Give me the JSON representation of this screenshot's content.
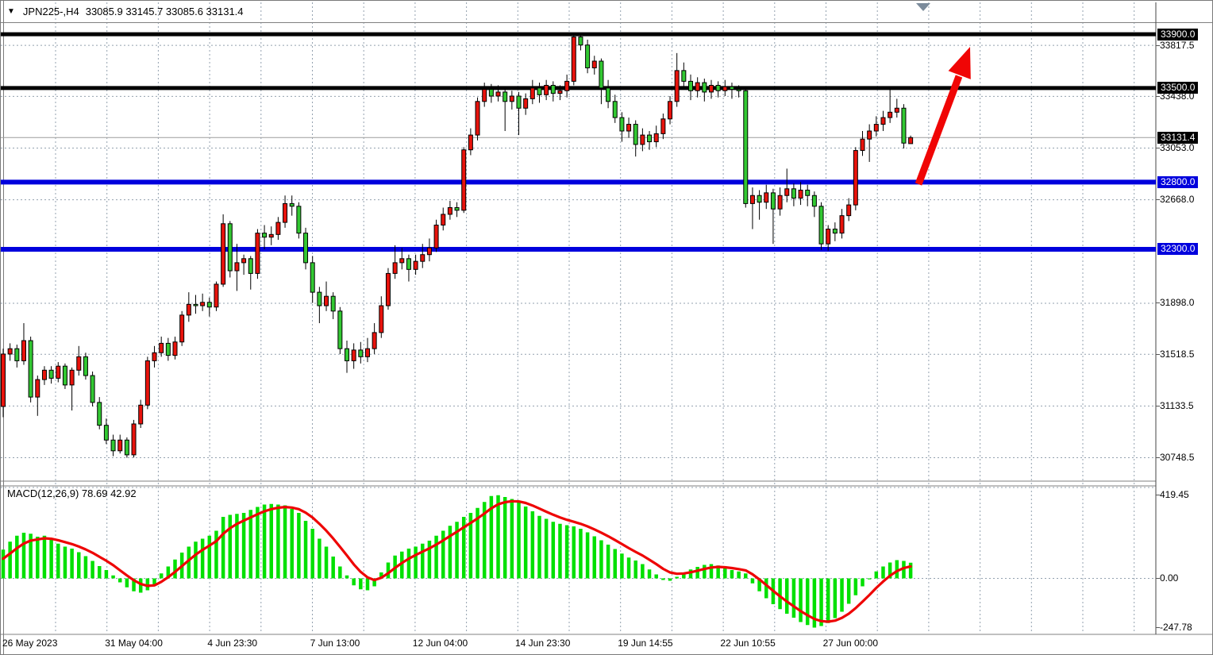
{
  "header": {
    "dropdown_icon": "▼",
    "symbol_period": "JPN225-,H4",
    "ohlc_text": "33085.9 33145.7 33085.6 33131.4"
  },
  "colors": {
    "bull_candle": "#e8130c",
    "bear_candle": "#32c832",
    "candle_outline": "#000000",
    "macd_histogram": "#00e000",
    "macd_signal": "#ee0404",
    "level_black": "#000000",
    "level_blue": "#0000dd",
    "current_price_line": "#9c9c9c",
    "grid": "#93a1af",
    "arrow": "#f00505",
    "badge_black_bg": "#000000",
    "badge_blue_bg": "#0000dd",
    "shift_marker": "#7b8b9b"
  },
  "chart_data": [
    {
      "type": "candlestick",
      "symbol": "JPN225-",
      "timeframe": "H4",
      "current_ohlc": {
        "open": 33085.9,
        "high": 33145.7,
        "low": 33085.6,
        "close": 33131.4
      },
      "ylim": [
        30570,
        33980
      ],
      "grid": "dashed",
      "y_gridlines": [
        {
          "text": "33817.5",
          "price": 33817.5
        },
        {
          "text": "33438.0",
          "price": 33438.0
        },
        {
          "text": "33053.0",
          "price": 33053.0
        },
        {
          "text": "32668.0",
          "price": 32668.0
        },
        {
          "text": "31898.0",
          "price": 31898.0
        },
        {
          "text": "31518.5",
          "price": 31518.5
        },
        {
          "text": "31133.5",
          "price": 31133.5
        },
        {
          "text": "30748.5",
          "price": 30748.5
        }
      ],
      "price_badges": [
        {
          "text": "33900.0",
          "price": 33900.0,
          "style": "black"
        },
        {
          "text": "33500.0",
          "price": 33500.0,
          "style": "black"
        },
        {
          "text": "33131.4",
          "price": 33131.4,
          "style": "black"
        },
        {
          "text": "32800.0",
          "price": 32800.0,
          "style": "blue"
        },
        {
          "text": "32300.0",
          "price": 32300.0,
          "style": "blue"
        }
      ],
      "horizontal_levels": [
        {
          "price": 33900.0,
          "style": "black",
          "width": 5
        },
        {
          "price": 33500.0,
          "style": "black",
          "width": 5
        },
        {
          "price": 32800.0,
          "style": "blue",
          "width": 6
        },
        {
          "price": 32300.0,
          "style": "blue",
          "width": 6
        }
      ],
      "current_price": 33131.4,
      "annotation": {
        "type": "up-arrow",
        "meaning": "projected breakout toward 33900 resistance"
      },
      "x_labels": [
        "26 May 2023",
        "31 May 04:00",
        "4 Jun 23:30",
        "7 Jun 13:00",
        "12 Jun 04:00",
        "14 Jun 23:30",
        "19 Jun 14:55",
        "22 Jun 10:55",
        "27 Jun 00:00"
      ],
      "candles_ohlc": [
        [
          31130,
          31560,
          31050,
          31520
        ],
        [
          31520,
          31600,
          31470,
          31560
        ],
        [
          31560,
          31590,
          31420,
          31470
        ],
        [
          31470,
          31750,
          31440,
          31620
        ],
        [
          31620,
          31650,
          31160,
          31200
        ],
        [
          31200,
          31360,
          31060,
          31330
        ],
        [
          31330,
          31430,
          31290,
          31400
        ],
        [
          31400,
          31430,
          31300,
          31340
        ],
        [
          31340,
          31460,
          31310,
          31430
        ],
        [
          31430,
          31450,
          31260,
          31290
        ],
        [
          31290,
          31420,
          31100,
          31400
        ],
        [
          31400,
          31580,
          31360,
          31500
        ],
        [
          31500,
          31530,
          31330,
          31360
        ],
        [
          31360,
          31390,
          31130,
          31160
        ],
        [
          31160,
          31200,
          30960,
          30990
        ],
        [
          30990,
          31040,
          30850,
          30880
        ],
        [
          30880,
          30920,
          30760,
          30800
        ],
        [
          30800,
          30920,
          30780,
          30880
        ],
        [
          30880,
          30900,
          30748,
          30770
        ],
        [
          30770,
          31030,
          30750,
          31000
        ],
        [
          31000,
          31180,
          30970,
          31140
        ],
        [
          31140,
          31500,
          31110,
          31470
        ],
        [
          31470,
          31580,
          31420,
          31530
        ],
        [
          31530,
          31650,
          31500,
          31600
        ],
        [
          31600,
          31640,
          31470,
          31510
        ],
        [
          31510,
          31650,
          31480,
          31610
        ],
        [
          31610,
          31840,
          31580,
          31810
        ],
        [
          31810,
          31980,
          31760,
          31890
        ],
        [
          31890,
          31960,
          31820,
          31880
        ],
        [
          31880,
          31970,
          31840,
          31905
        ],
        [
          31905,
          31940,
          31800,
          31870
        ],
        [
          31870,
          32060,
          31840,
          32040
        ],
        [
          32040,
          32560,
          32020,
          32490
        ],
        [
          32490,
          32510,
          32090,
          32140
        ],
        [
          32140,
          32340,
          31990,
          32200
        ],
        [
          32200,
          32260,
          32110,
          32230
        ],
        [
          32230,
          32250,
          32000,
          32120
        ],
        [
          32120,
          32450,
          32080,
          32420
        ],
        [
          32420,
          32480,
          32300,
          32390
        ],
        [
          32390,
          32470,
          32330,
          32410
        ],
        [
          32410,
          32540,
          32370,
          32500
        ],
        [
          32500,
          32700,
          32460,
          32640
        ],
        [
          32640,
          32700,
          32550,
          32620
        ],
        [
          32620,
          32650,
          32380,
          32420
        ],
        [
          32420,
          32460,
          32150,
          32200
        ],
        [
          32200,
          32250,
          31900,
          31980
        ],
        [
          31980,
          32020,
          31750,
          31880
        ],
        [
          31880,
          32060,
          31840,
          31950
        ],
        [
          31950,
          31980,
          31780,
          31840
        ],
        [
          31840,
          31870,
          31520,
          31560
        ],
        [
          31560,
          31620,
          31380,
          31470
        ],
        [
          31470,
          31600,
          31410,
          31550
        ],
        [
          31550,
          31610,
          31450,
          31500
        ],
        [
          31500,
          31640,
          31460,
          31560
        ],
        [
          31560,
          31750,
          31520,
          31680
        ],
        [
          31680,
          31950,
          31640,
          31880
        ],
        [
          31880,
          32160,
          31850,
          32120
        ],
        [
          32120,
          32330,
          32080,
          32200
        ],
        [
          32200,
          32310,
          32150,
          32230
        ],
        [
          32230,
          32260,
          32060,
          32150
        ],
        [
          32150,
          32260,
          32110,
          32210
        ],
        [
          32210,
          32340,
          32160,
          32260
        ],
        [
          32260,
          32380,
          32210,
          32310
        ],
        [
          32310,
          32520,
          32280,
          32480
        ],
        [
          32480,
          32610,
          32440,
          32560
        ],
        [
          32560,
          32660,
          32520,
          32610
        ],
        [
          32610,
          32650,
          32540,
          32590
        ],
        [
          32590,
          33060,
          32570,
          33040
        ],
        [
          33040,
          33200,
          33000,
          33150
        ],
        [
          33150,
          33430,
          33110,
          33400
        ],
        [
          33400,
          33540,
          33360,
          33490
        ],
        [
          33490,
          33530,
          33390,
          33440
        ],
        [
          33440,
          33520,
          33400,
          33470
        ],
        [
          33470,
          33500,
          33180,
          33400
        ],
        [
          33400,
          33480,
          33340,
          33440
        ],
        [
          33440,
          33470,
          33150,
          33350
        ],
        [
          33350,
          33460,
          33300,
          33420
        ],
        [
          33420,
          33560,
          33380,
          33500
        ],
        [
          33500,
          33540,
          33390,
          33450
        ],
        [
          33450,
          33560,
          33410,
          33520
        ],
        [
          33520,
          33550,
          33400,
          33460
        ],
        [
          33460,
          33520,
          33410,
          33480
        ],
        [
          33480,
          33600,
          33430,
          33550
        ],
        [
          33550,
          33905,
          33520,
          33880
        ],
        [
          33880,
          33900,
          33780,
          33820
        ],
        [
          33820,
          33860,
          33610,
          33650
        ],
        [
          33650,
          33740,
          33600,
          33700
        ],
        [
          33700,
          33720,
          33380,
          33500
        ],
        [
          33500,
          33560,
          33350,
          33400
        ],
        [
          33400,
          33450,
          33240,
          33280
        ],
        [
          33280,
          33320,
          33100,
          33180
        ],
        [
          33180,
          33280,
          33130,
          33230
        ],
        [
          33230,
          33260,
          32990,
          33080
        ],
        [
          33080,
          33200,
          33030,
          33150
        ],
        [
          33150,
          33180,
          33040,
          33100
        ],
        [
          33100,
          33220,
          33060,
          33160
        ],
        [
          33160,
          33310,
          33120,
          33270
        ],
        [
          33270,
          33440,
          33230,
          33400
        ],
        [
          33400,
          33760,
          33360,
          33630
        ],
        [
          33630,
          33690,
          33490,
          33550
        ],
        [
          33550,
          33600,
          33410,
          33480
        ],
        [
          33480,
          33580,
          33430,
          33540
        ],
        [
          33540,
          33570,
          33400,
          33470
        ],
        [
          33470,
          33560,
          33420,
          33520
        ],
        [
          33520,
          33550,
          33430,
          33480
        ],
        [
          33480,
          33560,
          33440,
          33510
        ],
        [
          33510,
          33540,
          33420,
          33490
        ],
        [
          33490,
          33520,
          33430,
          33480
        ],
        [
          33480,
          33500,
          32610,
          32640
        ],
        [
          32640,
          32760,
          32450,
          32700
        ],
        [
          32700,
          32740,
          32520,
          32650
        ],
        [
          32650,
          32780,
          32600,
          32720
        ],
        [
          32720,
          32750,
          32340,
          32600
        ],
        [
          32600,
          32760,
          32550,
          32700
        ],
        [
          32700,
          32900,
          32650,
          32750
        ],
        [
          32750,
          32790,
          32620,
          32680
        ],
        [
          32680,
          32800,
          32630,
          32740
        ],
        [
          32740,
          32780,
          32620,
          32700
        ],
        [
          32700,
          32730,
          32540,
          32620
        ],
        [
          32620,
          32650,
          32295,
          32340
        ],
        [
          32340,
          32480,
          32290,
          32450
        ],
        [
          32450,
          32500,
          32360,
          32420
        ],
        [
          32420,
          32600,
          32380,
          32550
        ],
        [
          32550,
          32680,
          32510,
          32630
        ],
        [
          32630,
          33060,
          32590,
          33035
        ],
        [
          33035,
          33180,
          32995,
          33120
        ],
        [
          33120,
          33230,
          32950,
          33180
        ],
        [
          33180,
          33290,
          33140,
          33230
        ],
        [
          33230,
          33330,
          33180,
          33280
        ],
        [
          33280,
          33500,
          33240,
          33320
        ],
        [
          33320,
          33420,
          33280,
          33350
        ],
        [
          33350,
          33380,
          33050,
          33090
        ],
        [
          33086,
          33146,
          33086,
          33131
        ]
      ]
    },
    {
      "type": "bar",
      "name": "MACD",
      "params": "12,26,9",
      "label_text": "MACD(12,26,9) 78.69 42.92",
      "macd_current": 78.69,
      "signal_current": 42.92,
      "ylim": [
        -290,
        460
      ],
      "y_ticks": [
        {
          "text": "419.45",
          "value": 419.45
        },
        {
          "text": "0.00",
          "value": 0.0
        },
        {
          "text": "-247.78",
          "value": -247.78
        }
      ],
      "histogram": [
        145,
        185,
        215,
        230,
        225,
        210,
        215,
        195,
        175,
        160,
        150,
        132,
        112,
        88,
        62,
        42,
        15,
        -20,
        -45,
        -65,
        -72,
        -60,
        -30,
        25,
        60,
        95,
        130,
        160,
        185,
        200,
        215,
        240,
        310,
        320,
        325,
        330,
        345,
        360,
        372,
        375,
        372,
        368,
        350,
        330,
        290,
        250,
        200,
        160,
        110,
        60,
        15,
        -35,
        -55,
        -60,
        -40,
        30,
        80,
        115,
        135,
        150,
        160,
        175,
        190,
        215,
        240,
        265,
        285,
        310,
        330,
        355,
        385,
        415,
        419,
        410,
        400,
        385,
        362,
        338,
        315,
        300,
        285,
        275,
        268,
        262,
        250,
        232,
        212,
        192,
        170,
        148,
        125,
        105,
        90,
        72,
        45,
        20,
        -8,
        -12,
        8,
        28,
        45,
        58,
        68,
        72,
        65,
        52,
        42,
        35,
        25,
        -25,
        -65,
        -100,
        -130,
        -155,
        -178,
        -198,
        -220,
        -235,
        -248,
        -240,
        -225,
        -200,
        -168,
        -128,
        -85,
        -40,
        -5,
        35,
        60,
        80,
        92,
        88,
        79
      ]
    }
  ]
}
